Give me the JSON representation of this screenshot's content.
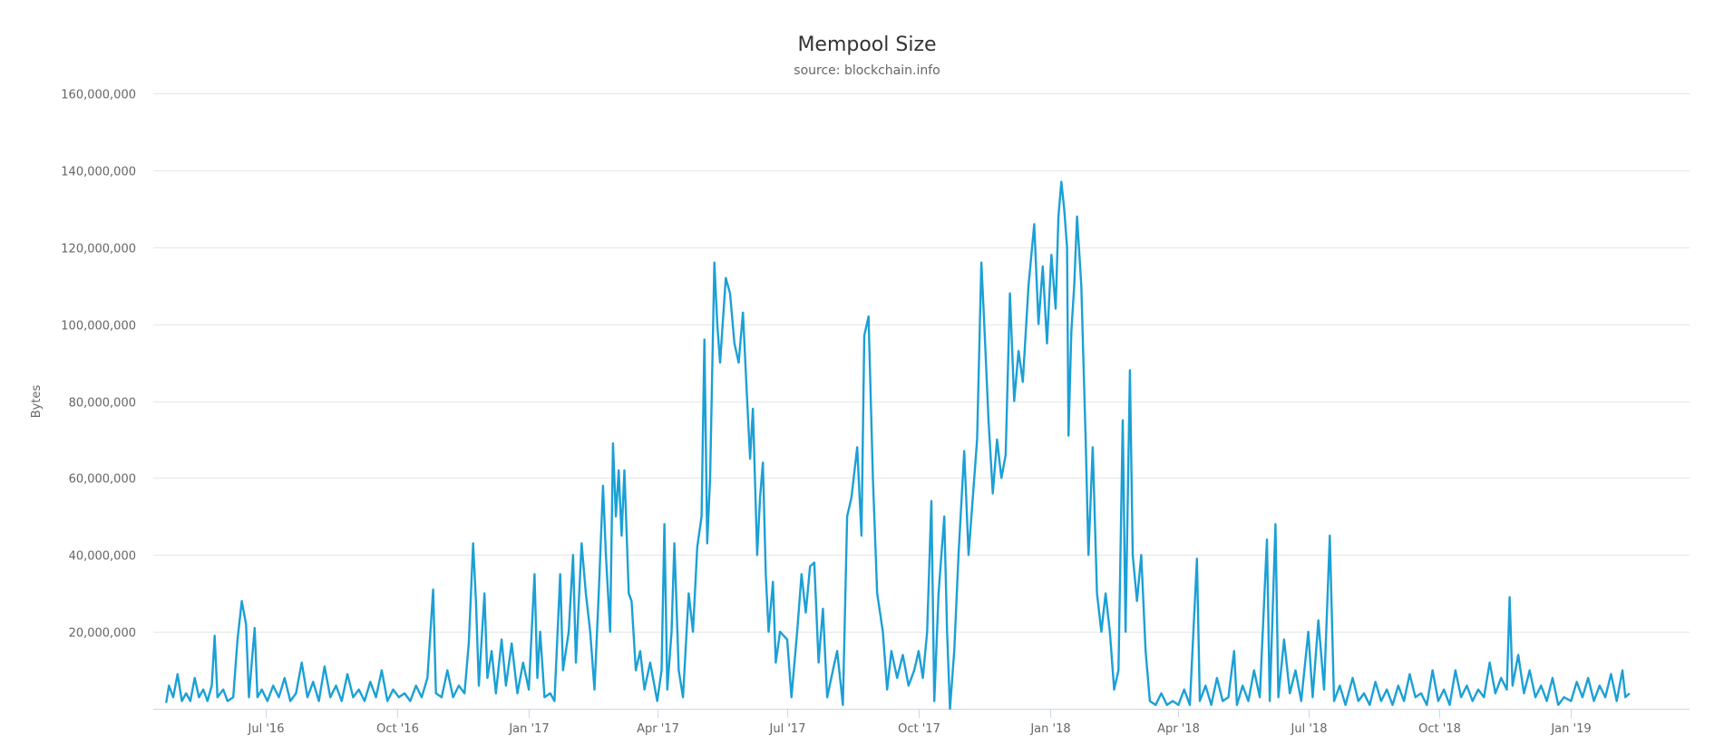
{
  "chart_data": {
    "type": "line",
    "title": "Mempool Size",
    "subtitle": "source: blockchain.info",
    "ylabel": "Bytes",
    "xlabel": "",
    "ylim": [
      0,
      160000000
    ],
    "yticks": [
      20000000,
      40000000,
      60000000,
      80000000,
      100000000,
      120000000,
      140000000,
      160000000
    ],
    "ytick_labels": [
      "20,000,000",
      "40,000,000",
      "60,000,000",
      "80,000,000",
      "100,000,000",
      "120,000,000",
      "140,000,000",
      "160,000,000"
    ],
    "xlim": [
      "2016-04-13",
      "2019-03-25"
    ],
    "xticks": [
      "2016-07-01",
      "2016-10-01",
      "2017-01-01",
      "2017-04-01",
      "2017-07-01",
      "2017-10-01",
      "2018-01-01",
      "2018-04-01",
      "2018-07-01",
      "2018-10-01",
      "2019-01-01"
    ],
    "xtick_labels": [
      "Jul '16",
      "Oct '16",
      "Jan '17",
      "Apr '17",
      "Jul '17",
      "Oct '17",
      "Jan '18",
      "Apr '18",
      "Jul '18",
      "Oct '18",
      "Jan '19"
    ],
    "grid": true,
    "legend": "none",
    "line_color": "#1ba0d6",
    "points": [
      [
        "2016-04-22",
        1.5
      ],
      [
        "2016-04-24",
        6
      ],
      [
        "2016-04-27",
        3
      ],
      [
        "2016-04-30",
        9
      ],
      [
        "2016-05-03",
        2
      ],
      [
        "2016-05-06",
        4
      ],
      [
        "2016-05-09",
        2
      ],
      [
        "2016-05-12",
        8
      ],
      [
        "2016-05-15",
        3
      ],
      [
        "2016-05-18",
        5
      ],
      [
        "2016-05-21",
        2
      ],
      [
        "2016-05-24",
        6
      ],
      [
        "2016-05-26",
        19
      ],
      [
        "2016-05-28",
        3
      ],
      [
        "2016-06-01",
        5
      ],
      [
        "2016-06-04",
        2
      ],
      [
        "2016-06-08",
        3
      ],
      [
        "2016-06-11",
        18
      ],
      [
        "2016-06-14",
        28
      ],
      [
        "2016-06-17",
        22
      ],
      [
        "2016-06-19",
        3
      ],
      [
        "2016-06-21",
        12
      ],
      [
        "2016-06-23",
        21
      ],
      [
        "2016-06-25",
        3
      ],
      [
        "2016-06-28",
        5
      ],
      [
        "2016-07-02",
        2
      ],
      [
        "2016-07-06",
        6
      ],
      [
        "2016-07-10",
        3
      ],
      [
        "2016-07-14",
        8
      ],
      [
        "2016-07-18",
        2
      ],
      [
        "2016-07-22",
        4
      ],
      [
        "2016-07-26",
        12
      ],
      [
        "2016-07-30",
        3
      ],
      [
        "2016-08-03",
        7
      ],
      [
        "2016-08-07",
        2
      ],
      [
        "2016-08-11",
        11
      ],
      [
        "2016-08-15",
        3
      ],
      [
        "2016-08-19",
        6
      ],
      [
        "2016-08-23",
        2
      ],
      [
        "2016-08-27",
        9
      ],
      [
        "2016-08-31",
        3
      ],
      [
        "2016-09-04",
        5
      ],
      [
        "2016-09-08",
        2
      ],
      [
        "2016-09-12",
        7
      ],
      [
        "2016-09-16",
        3
      ],
      [
        "2016-09-20",
        10
      ],
      [
        "2016-09-24",
        2
      ],
      [
        "2016-09-28",
        5
      ],
      [
        "2016-10-02",
        3
      ],
      [
        "2016-10-06",
        4
      ],
      [
        "2016-10-10",
        2
      ],
      [
        "2016-10-14",
        6
      ],
      [
        "2016-10-18",
        3
      ],
      [
        "2016-10-22",
        8
      ],
      [
        "2016-10-26",
        31
      ],
      [
        "2016-10-28",
        4
      ],
      [
        "2016-11-01",
        3
      ],
      [
        "2016-11-05",
        10
      ],
      [
        "2016-11-09",
        3
      ],
      [
        "2016-11-13",
        6
      ],
      [
        "2016-11-17",
        4
      ],
      [
        "2016-11-20",
        17
      ],
      [
        "2016-11-23",
        43
      ],
      [
        "2016-11-25",
        28
      ],
      [
        "2016-11-27",
        6
      ],
      [
        "2016-12-01",
        30
      ],
      [
        "2016-12-03",
        8
      ],
      [
        "2016-12-06",
        15
      ],
      [
        "2016-12-09",
        4
      ],
      [
        "2016-12-13",
        18
      ],
      [
        "2016-12-16",
        6
      ],
      [
        "2016-12-20",
        17
      ],
      [
        "2016-12-24",
        4
      ],
      [
        "2016-12-28",
        12
      ],
      [
        "2017-01-01",
        5
      ],
      [
        "2017-01-05",
        35
      ],
      [
        "2017-01-07",
        8
      ],
      [
        "2017-01-09",
        20
      ],
      [
        "2017-01-12",
        3
      ],
      [
        "2017-01-16",
        4
      ],
      [
        "2017-01-19",
        2
      ],
      [
        "2017-01-23",
        35
      ],
      [
        "2017-01-25",
        10
      ],
      [
        "2017-01-29",
        20
      ],
      [
        "2017-02-01",
        40
      ],
      [
        "2017-02-03",
        12
      ],
      [
        "2017-02-07",
        43
      ],
      [
        "2017-02-10",
        30
      ],
      [
        "2017-02-13",
        20
      ],
      [
        "2017-02-16",
        5
      ],
      [
        "2017-02-19",
        30
      ],
      [
        "2017-02-22",
        58
      ],
      [
        "2017-02-24",
        40
      ],
      [
        "2017-02-27",
        20
      ],
      [
        "2017-03-01",
        69
      ],
      [
        "2017-03-03",
        50
      ],
      [
        "2017-03-05",
        62
      ],
      [
        "2017-03-07",
        45
      ],
      [
        "2017-03-09",
        62
      ],
      [
        "2017-03-12",
        30
      ],
      [
        "2017-03-14",
        28
      ],
      [
        "2017-03-17",
        10
      ],
      [
        "2017-03-20",
        15
      ],
      [
        "2017-03-23",
        5
      ],
      [
        "2017-03-27",
        12
      ],
      [
        "2017-04-01",
        2
      ],
      [
        "2017-04-04",
        10
      ],
      [
        "2017-04-06",
        48
      ],
      [
        "2017-04-08",
        5
      ],
      [
        "2017-04-11",
        20
      ],
      [
        "2017-04-13",
        43
      ],
      [
        "2017-04-16",
        10
      ],
      [
        "2017-04-19",
        3
      ],
      [
        "2017-04-23",
        30
      ],
      [
        "2017-04-26",
        20
      ],
      [
        "2017-04-29",
        42
      ],
      [
        "2017-05-02",
        50
      ],
      [
        "2017-05-04",
        96
      ],
      [
        "2017-05-06",
        43
      ],
      [
        "2017-05-08",
        60
      ],
      [
        "2017-05-11",
        116
      ],
      [
        "2017-05-13",
        100
      ],
      [
        "2017-05-15",
        90
      ],
      [
        "2017-05-19",
        112
      ],
      [
        "2017-05-22",
        108
      ],
      [
        "2017-05-25",
        95
      ],
      [
        "2017-05-28",
        90
      ],
      [
        "2017-05-31",
        103
      ],
      [
        "2017-06-03",
        80
      ],
      [
        "2017-06-05",
        65
      ],
      [
        "2017-06-07",
        78
      ],
      [
        "2017-06-10",
        40
      ],
      [
        "2017-06-12",
        55
      ],
      [
        "2017-06-14",
        64
      ],
      [
        "2017-06-16",
        35
      ],
      [
        "2017-06-18",
        20
      ],
      [
        "2017-06-21",
        33
      ],
      [
        "2017-06-23",
        12
      ],
      [
        "2017-06-26",
        20
      ],
      [
        "2017-07-01",
        18
      ],
      [
        "2017-07-04",
        3
      ],
      [
        "2017-07-08",
        20
      ],
      [
        "2017-07-11",
        35
      ],
      [
        "2017-07-14",
        25
      ],
      [
        "2017-07-17",
        37
      ],
      [
        "2017-07-20",
        38
      ],
      [
        "2017-07-23",
        12
      ],
      [
        "2017-07-26",
        26
      ],
      [
        "2017-07-29",
        3
      ],
      [
        "2017-08-02",
        10
      ],
      [
        "2017-08-05",
        15
      ],
      [
        "2017-08-09",
        1
      ],
      [
        "2017-08-12",
        50
      ],
      [
        "2017-08-15",
        55
      ],
      [
        "2017-08-19",
        68
      ],
      [
        "2017-08-22",
        45
      ],
      [
        "2017-08-24",
        97
      ],
      [
        "2017-08-27",
        102
      ],
      [
        "2017-08-30",
        60
      ],
      [
        "2017-09-02",
        30
      ],
      [
        "2017-09-06",
        20
      ],
      [
        "2017-09-09",
        5
      ],
      [
        "2017-09-12",
        15
      ],
      [
        "2017-09-16",
        8
      ],
      [
        "2017-09-20",
        14
      ],
      [
        "2017-09-24",
        6
      ],
      [
        "2017-09-28",
        10
      ],
      [
        "2017-10-01",
        15
      ],
      [
        "2017-10-04",
        8
      ],
      [
        "2017-10-07",
        20
      ],
      [
        "2017-10-10",
        54
      ],
      [
        "2017-10-12",
        2
      ],
      [
        "2017-10-15",
        30
      ],
      [
        "2017-10-19",
        50
      ],
      [
        "2017-10-21",
        20
      ],
      [
        "2017-10-23",
        0
      ],
      [
        "2017-10-26",
        15
      ],
      [
        "2017-10-29",
        40
      ],
      [
        "2017-11-02",
        67
      ],
      [
        "2017-11-05",
        40
      ],
      [
        "2017-11-08",
        55
      ],
      [
        "2017-11-11",
        70
      ],
      [
        "2017-11-14",
        116
      ],
      [
        "2017-11-16",
        100
      ],
      [
        "2017-11-19",
        75
      ],
      [
        "2017-11-22",
        56
      ],
      [
        "2017-11-25",
        70
      ],
      [
        "2017-11-28",
        60
      ],
      [
        "2017-12-01",
        66
      ],
      [
        "2017-12-04",
        108
      ],
      [
        "2017-12-07",
        80
      ],
      [
        "2017-12-10",
        93
      ],
      [
        "2017-12-13",
        85
      ],
      [
        "2017-12-17",
        110
      ],
      [
        "2017-12-21",
        126
      ],
      [
        "2017-12-24",
        100
      ],
      [
        "2017-12-27",
        115
      ],
      [
        "2017-12-30",
        95
      ],
      [
        "2018-01-02",
        118
      ],
      [
        "2018-01-05",
        104
      ],
      [
        "2018-01-07",
        128
      ],
      [
        "2018-01-09",
        137
      ],
      [
        "2018-01-11",
        130
      ],
      [
        "2018-01-13",
        120
      ],
      [
        "2018-01-14",
        71
      ],
      [
        "2018-01-16",
        98
      ],
      [
        "2018-01-18",
        110
      ],
      [
        "2018-01-20",
        128
      ],
      [
        "2018-01-23",
        110
      ],
      [
        "2018-01-26",
        70
      ],
      [
        "2018-01-28",
        40
      ],
      [
        "2018-01-31",
        68
      ],
      [
        "2018-02-03",
        30
      ],
      [
        "2018-02-06",
        20
      ],
      [
        "2018-02-09",
        30
      ],
      [
        "2018-02-12",
        20
      ],
      [
        "2018-02-15",
        5
      ],
      [
        "2018-02-18",
        10
      ],
      [
        "2018-02-21",
        75
      ],
      [
        "2018-02-23",
        20
      ],
      [
        "2018-02-26",
        88
      ],
      [
        "2018-02-28",
        40
      ],
      [
        "2018-03-03",
        28
      ],
      [
        "2018-03-06",
        40
      ],
      [
        "2018-03-09",
        15
      ],
      [
        "2018-03-12",
        2
      ],
      [
        "2018-03-16",
        1
      ],
      [
        "2018-03-20",
        4
      ],
      [
        "2018-03-24",
        1
      ],
      [
        "2018-03-28",
        2
      ],
      [
        "2018-04-01",
        1
      ],
      [
        "2018-04-05",
        5
      ],
      [
        "2018-04-09",
        1
      ],
      [
        "2018-04-14",
        39
      ],
      [
        "2018-04-16",
        2
      ],
      [
        "2018-04-20",
        6
      ],
      [
        "2018-04-24",
        1
      ],
      [
        "2018-04-28",
        8
      ],
      [
        "2018-05-02",
        2
      ],
      [
        "2018-05-06",
        3
      ],
      [
        "2018-05-10",
        15
      ],
      [
        "2018-05-12",
        1
      ],
      [
        "2018-05-16",
        6
      ],
      [
        "2018-05-20",
        2
      ],
      [
        "2018-05-24",
        10
      ],
      [
        "2018-05-28",
        3
      ],
      [
        "2018-06-02",
        44
      ],
      [
        "2018-06-04",
        2
      ],
      [
        "2018-06-08",
        48
      ],
      [
        "2018-06-10",
        3
      ],
      [
        "2018-06-14",
        18
      ],
      [
        "2018-06-18",
        4
      ],
      [
        "2018-06-22",
        10
      ],
      [
        "2018-06-26",
        2
      ],
      [
        "2018-07-01",
        20
      ],
      [
        "2018-07-04",
        3
      ],
      [
        "2018-07-08",
        23
      ],
      [
        "2018-07-12",
        5
      ],
      [
        "2018-07-16",
        45
      ],
      [
        "2018-07-19",
        2
      ],
      [
        "2018-07-23",
        6
      ],
      [
        "2018-07-27",
        1
      ],
      [
        "2018-08-01",
        8
      ],
      [
        "2018-08-05",
        2
      ],
      [
        "2018-08-09",
        4
      ],
      [
        "2018-08-13",
        1
      ],
      [
        "2018-08-17",
        7
      ],
      [
        "2018-08-21",
        2
      ],
      [
        "2018-08-25",
        5
      ],
      [
        "2018-08-29",
        1
      ],
      [
        "2018-09-02",
        6
      ],
      [
        "2018-09-06",
        2
      ],
      [
        "2018-09-10",
        9
      ],
      [
        "2018-09-14",
        3
      ],
      [
        "2018-09-18",
        4
      ],
      [
        "2018-09-22",
        1
      ],
      [
        "2018-09-26",
        10
      ],
      [
        "2018-09-30",
        2
      ],
      [
        "2018-10-04",
        5
      ],
      [
        "2018-10-08",
        1
      ],
      [
        "2018-10-12",
        10
      ],
      [
        "2018-10-16",
        3
      ],
      [
        "2018-10-20",
        6
      ],
      [
        "2018-10-24",
        2
      ],
      [
        "2018-10-28",
        5
      ],
      [
        "2018-11-01",
        3
      ],
      [
        "2018-11-05",
        12
      ],
      [
        "2018-11-09",
        4
      ],
      [
        "2018-11-13",
        8
      ],
      [
        "2018-11-17",
        5
      ],
      [
        "2018-11-19",
        29
      ],
      [
        "2018-11-21",
        6
      ],
      [
        "2018-11-25",
        14
      ],
      [
        "2018-11-29",
        4
      ],
      [
        "2018-12-03",
        10
      ],
      [
        "2018-12-07",
        3
      ],
      [
        "2018-12-11",
        6
      ],
      [
        "2018-12-15",
        2
      ],
      [
        "2018-12-19",
        8
      ],
      [
        "2018-12-23",
        1
      ],
      [
        "2018-12-27",
        3
      ],
      [
        "2019-01-01",
        2
      ],
      [
        "2019-01-05",
        7
      ],
      [
        "2019-01-09",
        3
      ],
      [
        "2019-01-13",
        8
      ],
      [
        "2019-01-17",
        2
      ],
      [
        "2019-01-21",
        6
      ],
      [
        "2019-01-25",
        3
      ],
      [
        "2019-01-29",
        9
      ],
      [
        "2019-02-02",
        2
      ],
      [
        "2019-02-06",
        10
      ],
      [
        "2019-02-08",
        3
      ],
      [
        "2019-02-11",
        4
      ]
    ],
    "points_value_unit": "millions of bytes"
  }
}
